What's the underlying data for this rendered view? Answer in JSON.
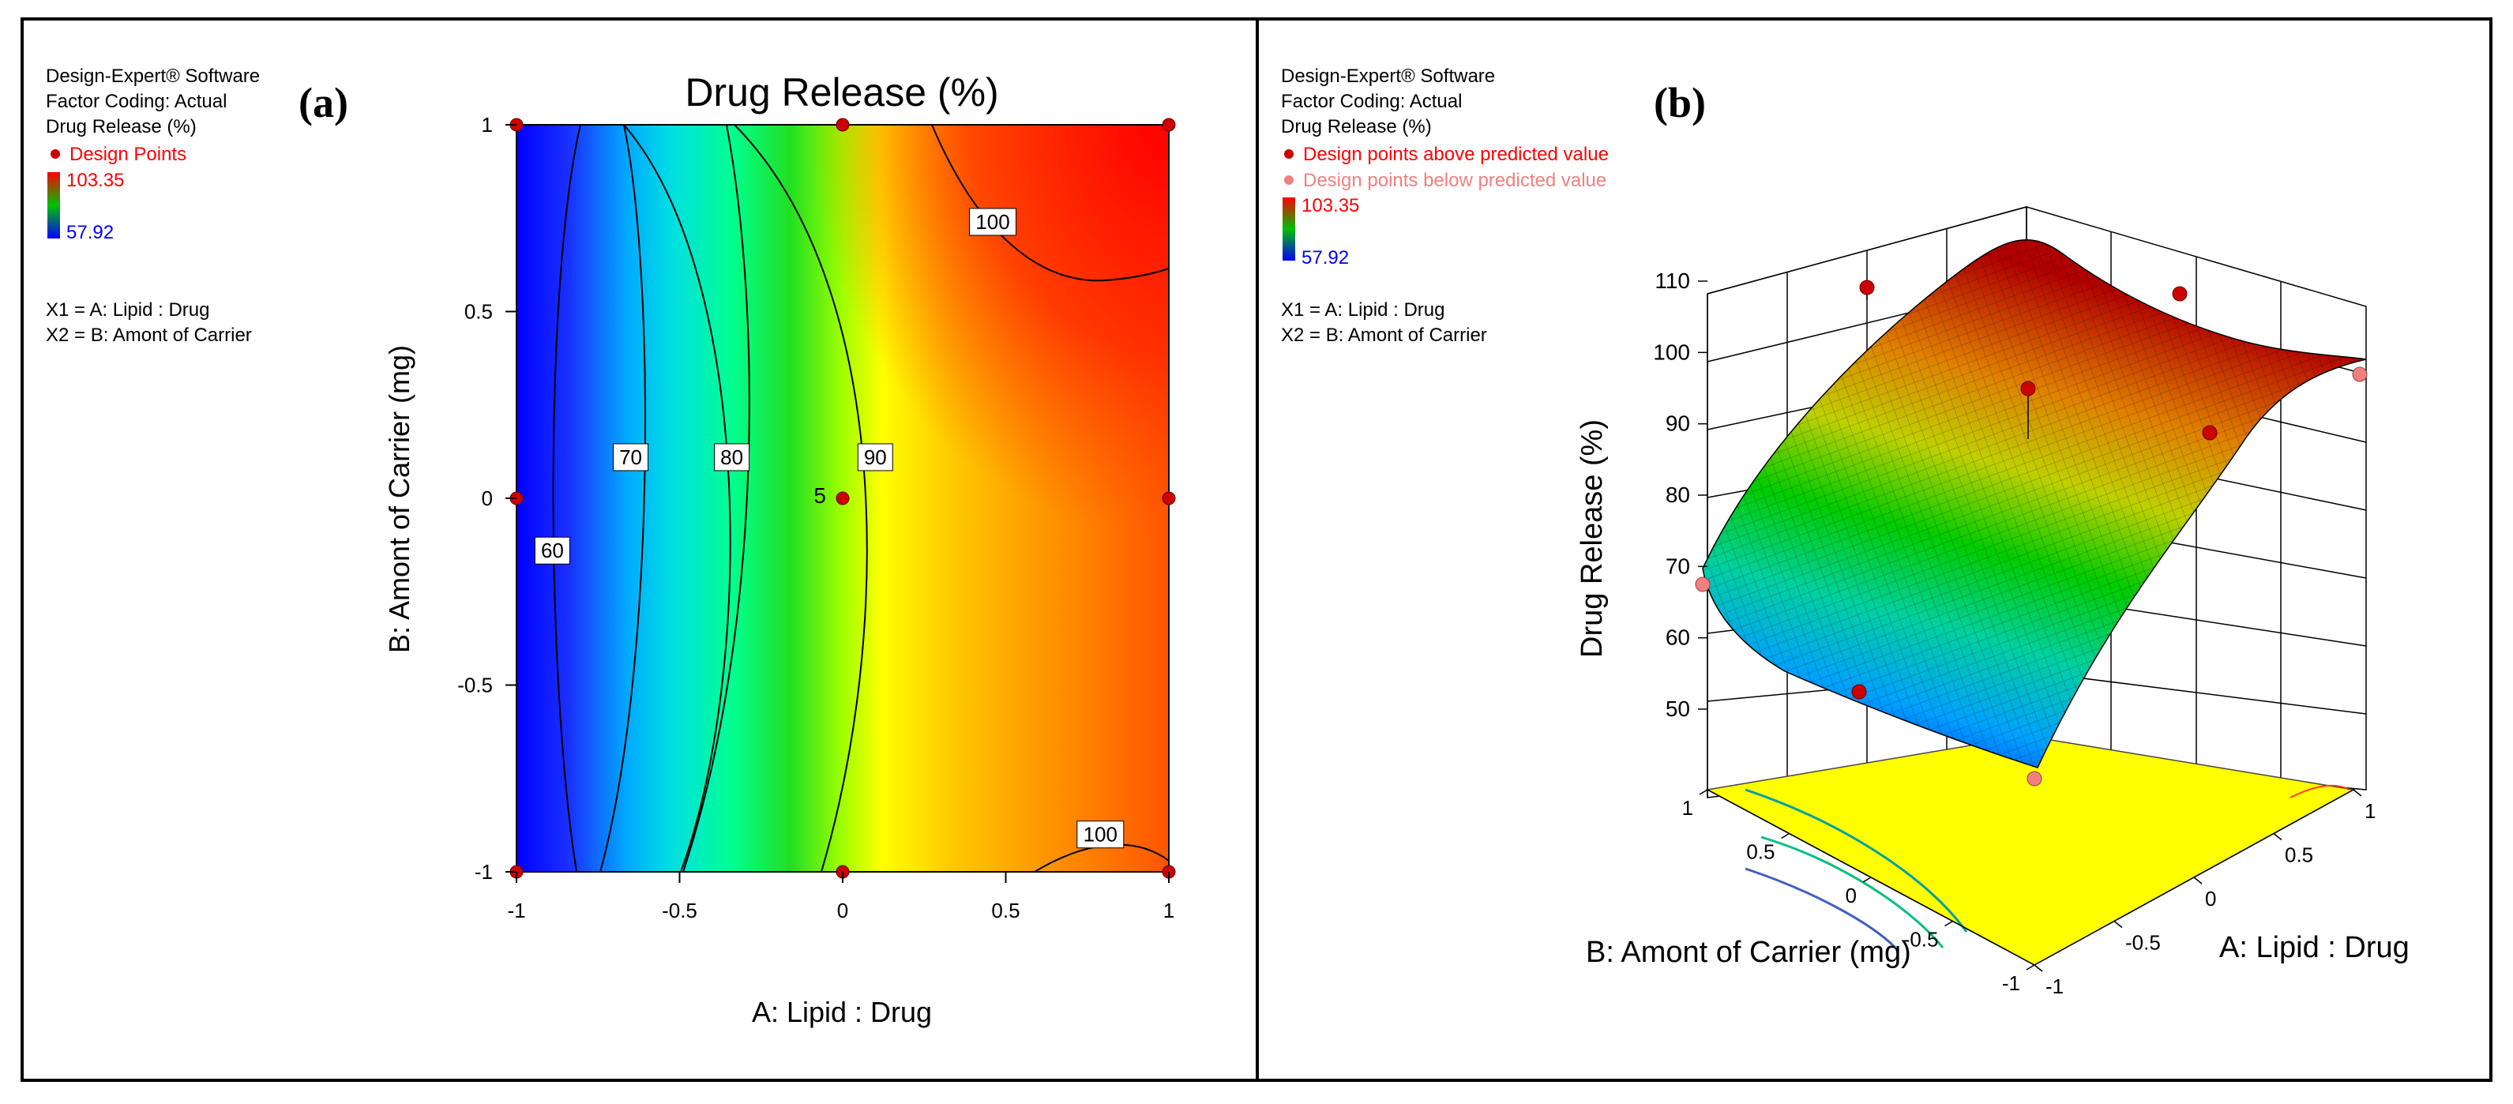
{
  "chart_data": [
    {
      "type": "contour",
      "panel_label": "(a)",
      "title": "Drug Release (%)",
      "xlabel": "A: Lipid : Drug",
      "ylabel": "B: Amont of Carrier (mg)",
      "xlim": [
        -1,
        1
      ],
      "ylim": [
        -1,
        1
      ],
      "xticks": [
        "-1",
        "-0.5",
        "0",
        "0.5",
        "1"
      ],
      "yticks": [
        "-1",
        "-0.5",
        "0",
        "0.5",
        "1"
      ],
      "legend": {
        "lines": [
          "Design-Expert® Software",
          "Factor Coding: Actual",
          "Drug Release (%)"
        ],
        "design_points_label": "Design Points",
        "max_label": "103.35",
        "min_label": "57.92",
        "factors": [
          "X1 = A: Lipid : Drug",
          "X2 = B: Amont of Carrier"
        ]
      },
      "contour_levels": [
        {
          "label": "60",
          "label_x": -0.89,
          "label_y": -0.14
        },
        {
          "label": "70",
          "label_x": -0.65,
          "label_y": 0.11
        },
        {
          "label": "80",
          "label_x": -0.34,
          "label_y": 0.11
        },
        {
          "label": "90",
          "label_x": 0.1,
          "label_y": 0.11
        },
        {
          "label": "100",
          "label_x": 0.46,
          "label_y": 0.74
        },
        {
          "label": "100",
          "label_x": 0.79,
          "label_y": -0.9
        }
      ],
      "design_points": [
        {
          "a": -1,
          "b": 1
        },
        {
          "a": 0,
          "b": 1
        },
        {
          "a": 1,
          "b": 1
        },
        {
          "a": -1,
          "b": 0
        },
        {
          "a": 0,
          "b": 0
        },
        {
          "a": 1,
          "b": 0
        },
        {
          "a": -1,
          "b": -1
        },
        {
          "a": 0,
          "b": -1
        },
        {
          "a": 1,
          "b": -1
        }
      ],
      "center_replicates_label": "5"
    },
    {
      "type": "surface3d",
      "panel_label": "(b)",
      "zlabel": "Drug Release (%)",
      "xlabel": "A: Lipid : Drug",
      "ylabel": "B: Amont of Carrier (mg)",
      "zticks": [
        "50",
        "60",
        "70",
        "80",
        "90",
        "100",
        "110"
      ],
      "xticks": [
        "-1",
        "-0.5",
        "0",
        "0.5",
        "1"
      ],
      "yticks": [
        "-1",
        "-0.5",
        "0",
        "0.5",
        "1"
      ],
      "zlim": [
        45,
        112
      ],
      "legend": {
        "lines": [
          "Design-Expert® Software",
          "Factor Coding: Actual",
          "Drug Release (%)"
        ],
        "above_label": "Design points above predicted value",
        "below_label": "Design points below predicted value",
        "max_label": "103.35",
        "min_label": "57.92",
        "factors": [
          "X1 = A: Lipid : Drug",
          "X2 = B: Amont of Carrier"
        ]
      }
    }
  ],
  "colors": {
    "point_above": "#cc0000",
    "point_below": "#f08080",
    "legend_red": "#ff0000",
    "legend_pink": "#f08080",
    "legend_blue": "#0000ff",
    "floor": "#ffff00"
  }
}
